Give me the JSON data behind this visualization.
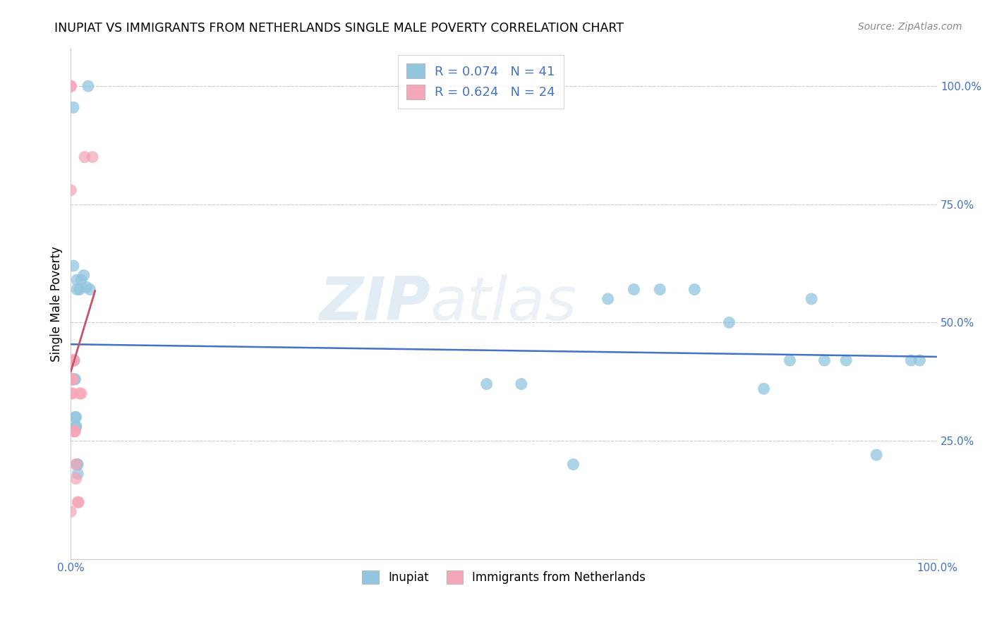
{
  "title": "INUPIAT VS IMMIGRANTS FROM NETHERLANDS SINGLE MALE POVERTY CORRELATION CHART",
  "source": "Source: ZipAtlas.com",
  "ylabel": "Single Male Poverty",
  "legend_label1": "Inupiat",
  "legend_label2": "Immigrants from Netherlands",
  "R1": "0.074",
  "N1": "41",
  "R2": "0.624",
  "N2": "24",
  "color_blue": "#92C5DE",
  "color_pink": "#F4A7B9",
  "line_blue": "#4472C4",
  "line_pink": "#C9526A",
  "watermark_zip": "ZIP",
  "watermark_atlas": "atlas",
  "inupiat_x": [
    0.003,
    0.02,
    0.003,
    0.007,
    0.007,
    0.01,
    0.012,
    0.015,
    0.018,
    0.022,
    0.002,
    0.002,
    0.002,
    0.003,
    0.004,
    0.004,
    0.005,
    0.005,
    0.006,
    0.006,
    0.006,
    0.007,
    0.007,
    0.008,
    0.008,
    0.48,
    0.52,
    0.58,
    0.62,
    0.65,
    0.68,
    0.72,
    0.76,
    0.8,
    0.83,
    0.855,
    0.87,
    0.895,
    0.93,
    0.97,
    0.98
  ],
  "inupiat_y": [
    0.955,
    1.0,
    0.62,
    0.57,
    0.59,
    0.57,
    0.59,
    0.6,
    0.575,
    0.57,
    0.38,
    0.38,
    0.42,
    0.42,
    0.42,
    0.38,
    0.38,
    0.3,
    0.3,
    0.28,
    0.28,
    0.2,
    0.2,
    0.2,
    0.18,
    0.37,
    0.37,
    0.2,
    0.55,
    0.57,
    0.57,
    0.57,
    0.5,
    0.36,
    0.42,
    0.55,
    0.42,
    0.42,
    0.22,
    0.42,
    0.42
  ],
  "netherlands_x": [
    0.0,
    0.0,
    0.0,
    0.0,
    0.0,
    0.0,
    0.0,
    0.0,
    0.002,
    0.002,
    0.002,
    0.003,
    0.003,
    0.004,
    0.004,
    0.005,
    0.006,
    0.006,
    0.008,
    0.009,
    0.01,
    0.012,
    0.016,
    0.025
  ],
  "netherlands_y": [
    1.0,
    1.0,
    0.78,
    0.42,
    0.42,
    0.38,
    0.35,
    0.1,
    0.38,
    0.35,
    0.38,
    0.42,
    0.42,
    0.27,
    0.27,
    0.27,
    0.2,
    0.17,
    0.12,
    0.12,
    0.35,
    0.35,
    0.85,
    0.85
  ],
  "xlim": [
    0.0,
    1.0
  ],
  "ylim": [
    0.0,
    1.08
  ],
  "yticks": [
    0.0,
    0.25,
    0.5,
    0.75,
    1.0
  ],
  "ytick_labels": [
    "",
    "25.0%",
    "50.0%",
    "75.0%",
    "100.0%"
  ],
  "xtick_labels": [
    "0.0%",
    "100.0%"
  ],
  "grid_color": "#CCCCCC"
}
